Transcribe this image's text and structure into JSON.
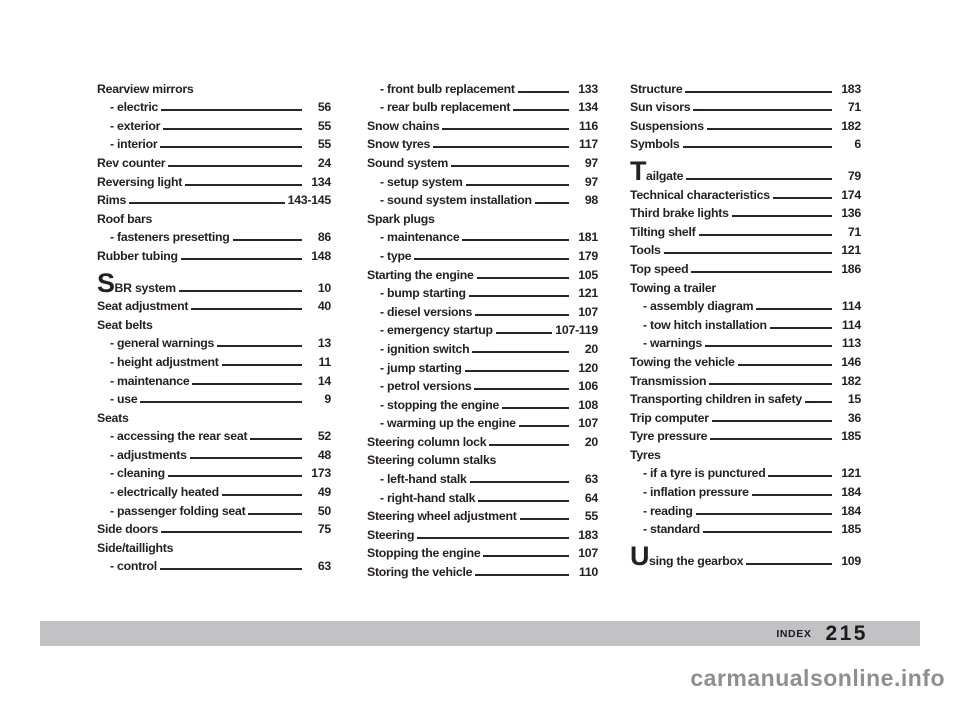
{
  "footer": {
    "section_label": "INDEX",
    "page_number": "215"
  },
  "watermark": "carmanualsonline.info",
  "colors": {
    "text": "#241f21",
    "footer_bar": "#c2c2c4",
    "watermark": "#8f8f8f"
  },
  "index": {
    "columns": [
      {
        "entries": [
          {
            "label": "Rearview mirrors",
            "page": "",
            "kind": "header"
          },
          {
            "label": "- electric",
            "page": "56",
            "kind": "sub"
          },
          {
            "label": "- exterior",
            "page": "55",
            "kind": "sub"
          },
          {
            "label": "- interior",
            "page": "55",
            "kind": "sub"
          },
          {
            "label": "Rev counter",
            "page": "24",
            "kind": "main"
          },
          {
            "label": "Reversing light",
            "page": "134",
            "kind": "main"
          },
          {
            "label": "Rims",
            "page": "143-145",
            "kind": "main"
          },
          {
            "label": "Roof bars",
            "page": "",
            "kind": "header"
          },
          {
            "label": "- fasteners presetting",
            "page": "86",
            "kind": "sub"
          },
          {
            "label": "Rubber tubing",
            "page": "148",
            "kind": "main"
          },
          {
            "label": "SBR system",
            "page": "10",
            "kind": "main",
            "dropcap": true,
            "gap": true
          },
          {
            "label": "Seat adjustment",
            "page": "40",
            "kind": "main"
          },
          {
            "label": "Seat belts",
            "page": "",
            "kind": "header"
          },
          {
            "label": "- general warnings",
            "page": "13",
            "kind": "sub"
          },
          {
            "label": "- height adjustment",
            "page": "11",
            "kind": "sub"
          },
          {
            "label": "- maintenance",
            "page": "14",
            "kind": "sub"
          },
          {
            "label": "- use",
            "page": "9",
            "kind": "sub"
          },
          {
            "label": "Seats",
            "page": "",
            "kind": "header"
          },
          {
            "label": "- accessing the rear seat",
            "page": "52",
            "kind": "sub"
          },
          {
            "label": "- adjustments",
            "page": "48",
            "kind": "sub"
          },
          {
            "label": "- cleaning",
            "page": "173",
            "kind": "sub"
          },
          {
            "label": "- electrically heated",
            "page": "49",
            "kind": "sub"
          },
          {
            "label": "- passenger folding seat",
            "page": "50",
            "kind": "sub"
          },
          {
            "label": "Side doors",
            "page": "75",
            "kind": "main"
          },
          {
            "label": "Side/taillights",
            "page": "",
            "kind": "header"
          },
          {
            "label": "- control",
            "page": "63",
            "kind": "sub"
          }
        ]
      },
      {
        "entries": [
          {
            "label": "- front bulb replacement",
            "page": "133",
            "kind": "sub"
          },
          {
            "label": "- rear bulb replacement",
            "page": "134",
            "kind": "sub"
          },
          {
            "label": "Snow chains",
            "page": "116",
            "kind": "main"
          },
          {
            "label": "Snow tyres",
            "page": "117",
            "kind": "main"
          },
          {
            "label": "Sound system",
            "page": "97",
            "kind": "main"
          },
          {
            "label": "- setup system",
            "page": "97",
            "kind": "sub"
          },
          {
            "label": "- sound system installation",
            "page": "98",
            "kind": "sub"
          },
          {
            "label": "Spark plugs",
            "page": "",
            "kind": "header"
          },
          {
            "label": "- maintenance",
            "page": "181",
            "kind": "sub"
          },
          {
            "label": "- type",
            "page": "179",
            "kind": "sub"
          },
          {
            "label": "Starting the engine",
            "page": "105",
            "kind": "main"
          },
          {
            "label": "- bump starting",
            "page": "121",
            "kind": "sub"
          },
          {
            "label": "- diesel versions",
            "page": "107",
            "kind": "sub"
          },
          {
            "label": "- emergency startup",
            "page": "107-119",
            "kind": "sub"
          },
          {
            "label": "- ignition switch",
            "page": "20",
            "kind": "sub"
          },
          {
            "label": "- jump starting",
            "page": "120",
            "kind": "sub"
          },
          {
            "label": "- petrol versions",
            "page": "106",
            "kind": "sub"
          },
          {
            "label": "- stopping the engine",
            "page": "108",
            "kind": "sub"
          },
          {
            "label": "- warming up the engine",
            "page": "107",
            "kind": "sub"
          },
          {
            "label": "Steering column lock",
            "page": "20",
            "kind": "main"
          },
          {
            "label": "Steering column stalks",
            "page": "",
            "kind": "header"
          },
          {
            "label": "- left-hand stalk",
            "page": "63",
            "kind": "sub"
          },
          {
            "label": "- right-hand stalk",
            "page": "64",
            "kind": "sub"
          },
          {
            "label": "Steering wheel adjustment",
            "page": "55",
            "kind": "main"
          },
          {
            "label": "Steering",
            "page": "183",
            "kind": "main"
          },
          {
            "label": "Stopping the engine",
            "page": "107",
            "kind": "main"
          },
          {
            "label": "Storing the vehicle",
            "page": "110",
            "kind": "main"
          }
        ]
      },
      {
        "entries": [
          {
            "label": "Structure",
            "page": "183",
            "kind": "main"
          },
          {
            "label": "Sun visors",
            "page": "71",
            "kind": "main"
          },
          {
            "label": "Suspensions",
            "page": "182",
            "kind": "main"
          },
          {
            "label": "Symbols",
            "page": "6",
            "kind": "main"
          },
          {
            "label": "Tailgate",
            "page": "79",
            "kind": "main",
            "dropcap": true,
            "gap": true
          },
          {
            "label": "Technical characteristics",
            "page": "174",
            "kind": "main"
          },
          {
            "label": "Third brake lights",
            "page": "136",
            "kind": "main"
          },
          {
            "label": "Tilting shelf",
            "page": "71",
            "kind": "main"
          },
          {
            "label": "Tools",
            "page": "121",
            "kind": "main"
          },
          {
            "label": "Top speed",
            "page": "186",
            "kind": "main"
          },
          {
            "label": "Towing a trailer",
            "page": "",
            "kind": "header"
          },
          {
            "label": "- assembly diagram",
            "page": "114",
            "kind": "sub"
          },
          {
            "label": "- tow hitch installation",
            "page": "114",
            "kind": "sub"
          },
          {
            "label": "- warnings",
            "page": "113",
            "kind": "sub"
          },
          {
            "label": "Towing the vehicle",
            "page": "146",
            "kind": "main"
          },
          {
            "label": "Transmission",
            "page": "182",
            "kind": "main"
          },
          {
            "label": "Transporting children in safety",
            "page": "15",
            "kind": "main"
          },
          {
            "label": "Trip computer",
            "page": "36",
            "kind": "main"
          },
          {
            "label": "Tyre pressure",
            "page": "185",
            "kind": "main"
          },
          {
            "label": "Tyres",
            "page": "",
            "kind": "header"
          },
          {
            "label": "- if a tyre is punctured",
            "page": "121",
            "kind": "sub"
          },
          {
            "label": "- inflation pressure",
            "page": "184",
            "kind": "sub"
          },
          {
            "label": "- reading",
            "page": "184",
            "kind": "sub"
          },
          {
            "label": "- standard",
            "page": "185",
            "kind": "sub"
          },
          {
            "label": "Using the gearbox",
            "page": "109",
            "kind": "main",
            "dropcap": true,
            "gap": true
          }
        ]
      }
    ]
  }
}
